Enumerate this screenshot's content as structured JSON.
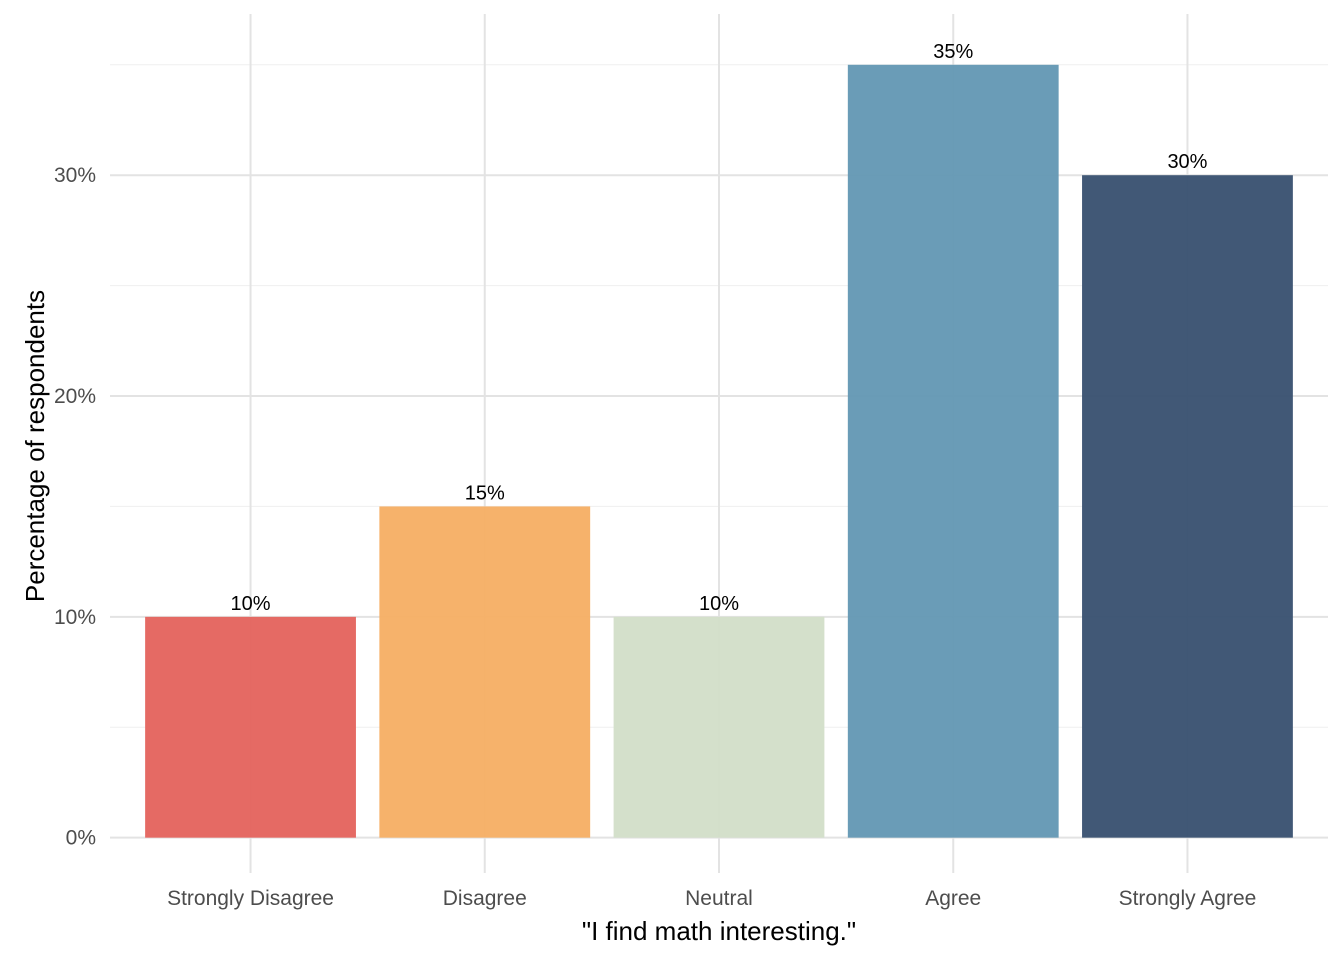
{
  "chart_data": {
    "type": "bar",
    "categories": [
      "Strongly Disagree",
      "Disagree",
      "Neutral",
      "Agree",
      "Strongly Agree"
    ],
    "values": [
      10,
      15,
      10,
      35,
      30
    ],
    "data_labels": [
      "10%",
      "15%",
      "10%",
      "35%",
      "30%"
    ],
    "colors": [
      "#e4655f",
      "#f6b066",
      "#d3dfc9",
      "#6599b5",
      "#3b5372"
    ],
    "title": "",
    "xlabel": "\"I find math interesting.\"",
    "ylabel": "Percentage of respondents",
    "ylim": [
      -1.6,
      37.3
    ],
    "yticks": [
      0,
      10,
      20,
      30
    ],
    "ytick_labels": [
      "0%",
      "10%",
      "20%",
      "30%"
    ],
    "grid": true,
    "legend": "none"
  }
}
